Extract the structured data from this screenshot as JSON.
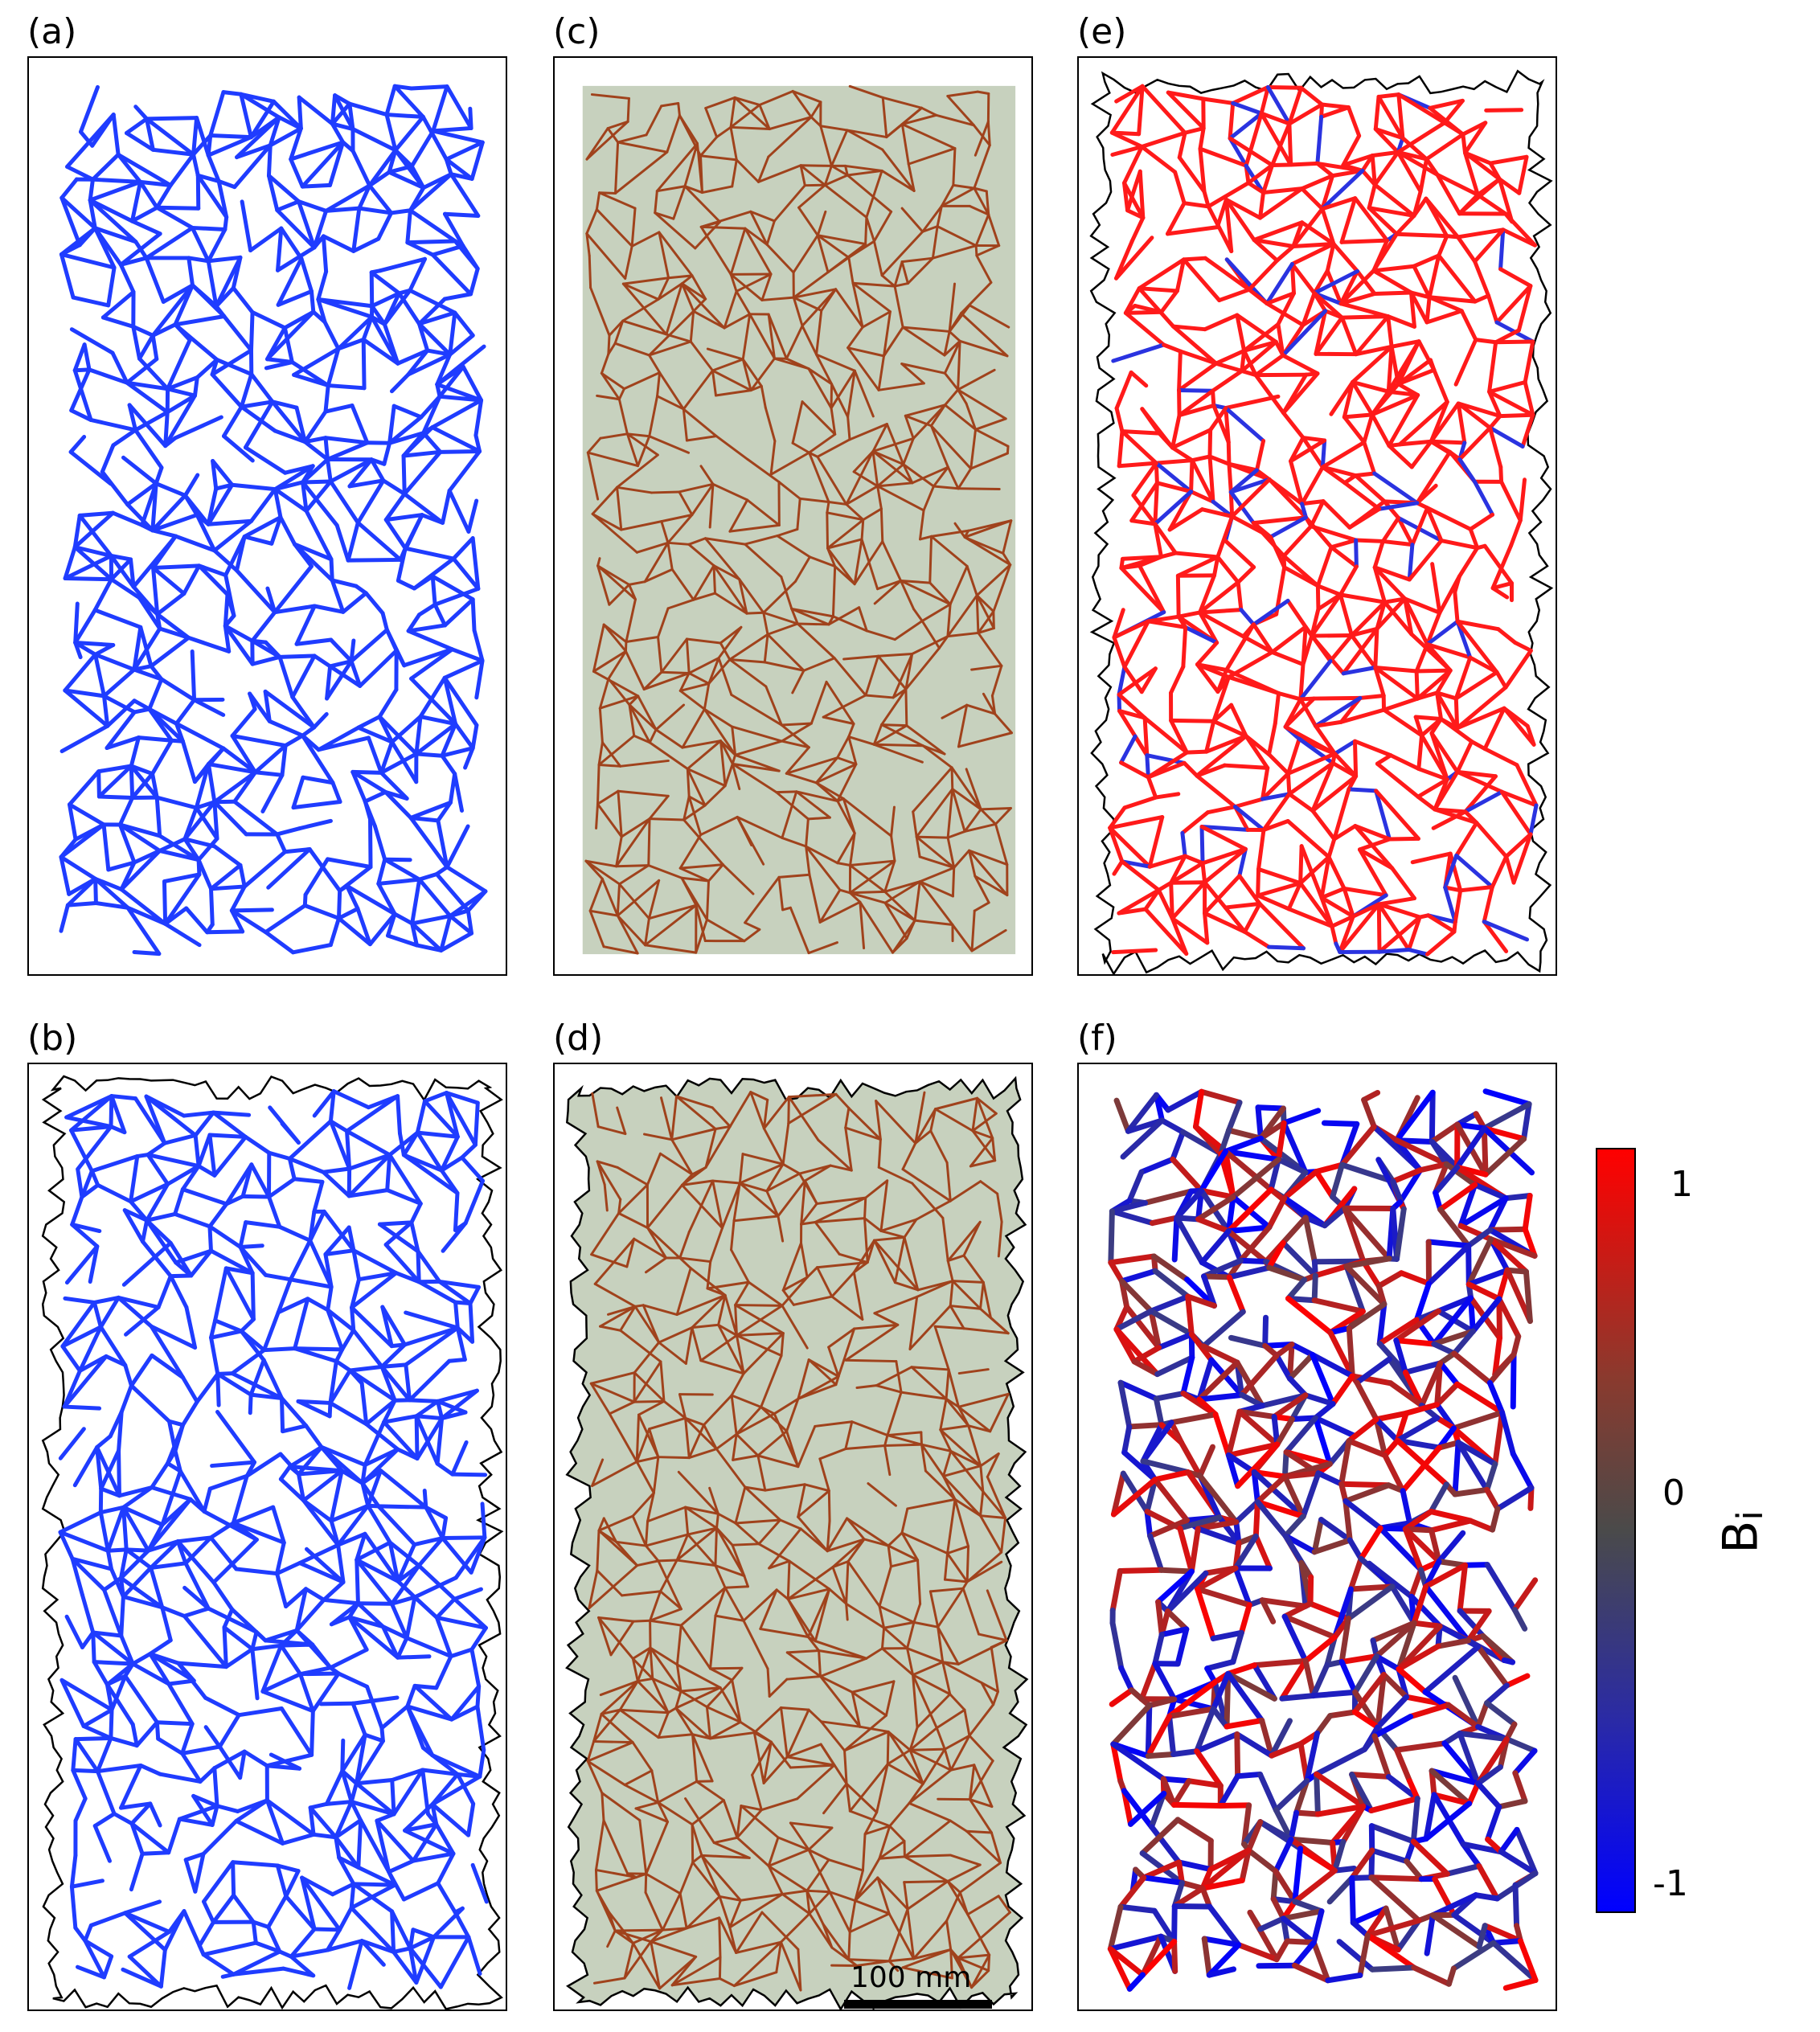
{
  "panels": [
    {
      "id": "a",
      "label": "(a)",
      "style": "blue",
      "outline": false,
      "fill": false
    },
    {
      "id": "c",
      "label": "(c)",
      "style": "brown",
      "outline": false,
      "fill": true
    },
    {
      "id": "e",
      "label": "(e)",
      "style": "red",
      "outline": true,
      "fill": false
    },
    {
      "id": "b",
      "label": "(b)",
      "style": "blue",
      "outline": true,
      "fill": false
    },
    {
      "id": "d",
      "label": "(d)",
      "style": "brown",
      "outline": true,
      "fill": true
    },
    {
      "id": "f",
      "label": "(f)",
      "style": "mixed",
      "outline": false,
      "fill": false
    }
  ],
  "colors": {
    "blue_network": "#1f3cff",
    "brown_network": "#a0421c",
    "fill_gray_green": "#c7d1be",
    "red_network": "#ff1a1a",
    "outline": "#000000"
  },
  "colorbar": {
    "title_main": "B",
    "title_sub": "i",
    "tick_top": "1",
    "tick_mid": "0",
    "tick_bottom": "-1",
    "range": [
      -1,
      1
    ]
  },
  "scalebar": {
    "label": "100 mm"
  }
}
